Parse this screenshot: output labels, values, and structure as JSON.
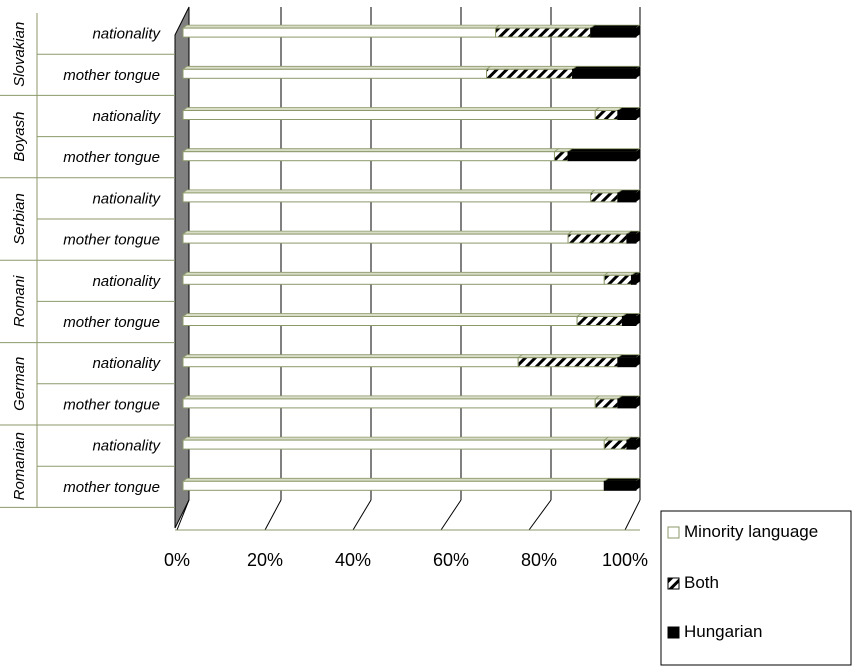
{
  "chart_data": {
    "type": "bar",
    "orientation": "horizontal",
    "stacking": "percent",
    "groups": [
      "Slovakian",
      "Boyash",
      "Serbian",
      "Romani",
      "German",
      "Romanian"
    ],
    "subcategories": [
      "nationality",
      "mother tongue"
    ],
    "categories": [
      "Slovakian nationality",
      "Slovakian mother tongue",
      "Boyash nationality",
      "Boyash mother tongue",
      "Serbian nationality",
      "Serbian mother tongue",
      "Romani nationality",
      "Romani mother tongue",
      "German nationality",
      "German mother tongue",
      "Romanian nationality",
      "Romanian mother tongue"
    ],
    "series": [
      {
        "name": "Minority language",
        "values": [
          69,
          67,
          91,
          82,
          90,
          85,
          93,
          87,
          74,
          91,
          93,
          93
        ]
      },
      {
        "name": "Both",
        "values": [
          21,
          19,
          5,
          3,
          6,
          13,
          6,
          10,
          22,
          5,
          5,
          0
        ]
      },
      {
        "name": "Hungarian",
        "values": [
          10,
          14,
          4,
          15,
          4,
          2,
          1,
          3,
          4,
          4,
          2,
          7
        ]
      }
    ],
    "x_ticks": [
      "0%",
      "20%",
      "40%",
      "60%",
      "80%",
      "100%"
    ],
    "xlim": [
      0,
      100
    ],
    "legend": "bottom-right",
    "grid": true,
    "colors": {
      "Minority language": "#ffffff",
      "Both": "#ffffff",
      "Hungarian": "#000000",
      "bar_outline": "#8c9a6a",
      "wall": "#808080",
      "gridline": "#000000",
      "separator": "#8c9a6a"
    }
  }
}
